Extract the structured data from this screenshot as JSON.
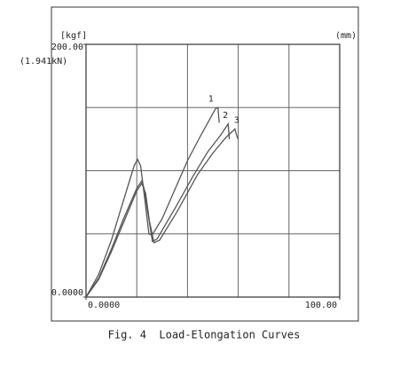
{
  "chart_data": {
    "type": "line",
    "caption": "Fig. 4  Load-Elongation Curves",
    "y_unit": "[kgf]",
    "y_alt_label": "(1.941kN)",
    "x_unit": "(mm)",
    "xlim": [
      0,
      100
    ],
    "ylim": [
      0,
      200
    ],
    "xticks": [
      {
        "value": 0,
        "label": "0.0000"
      },
      {
        "value": 100,
        "label": "100.00"
      }
    ],
    "yticks": [
      {
        "value": 0,
        "label": "0.0000"
      },
      {
        "value": 200,
        "label": "200.00"
      }
    ],
    "xgrid": [
      20,
      40,
      60,
      80
    ],
    "ygrid": [
      50,
      100,
      150
    ],
    "series": [
      {
        "name": "1",
        "color": "#555555",
        "x": [
          0,
          5,
          10,
          15,
          19,
          20.3,
          21.5,
          23,
          24.8,
          26,
          30,
          35,
          40,
          45,
          48,
          51,
          52,
          52.5
        ],
        "values": [
          0,
          18,
          45,
          78,
          104,
          109,
          104,
          80,
          50,
          49,
          62,
          85,
          108,
          127,
          138,
          149,
          150,
          138
        ]
      },
      {
        "name": "2",
        "color": "#555555",
        "x": [
          0,
          5,
          10,
          15,
          20,
          22,
          23,
          24.5,
          26.2,
          28,
          35,
          42,
          48,
          53,
          56,
          56.5
        ],
        "values": [
          0,
          15,
          38,
          63,
          86,
          92,
          85,
          65,
          44,
          46,
          70,
          95,
          115,
          128,
          137,
          125
        ]
      },
      {
        "name": "3",
        "color": "#555555",
        "x": [
          0,
          5,
          10,
          15,
          20,
          22,
          23.5,
          25,
          26.8,
          29,
          36,
          44,
          50,
          55,
          58.7,
          59.5,
          60
        ],
        "values": [
          0,
          14,
          36,
          60,
          84,
          90,
          82,
          60,
          43,
          45,
          68,
          97,
          114,
          126,
          133,
          127,
          125
        ]
      }
    ]
  }
}
